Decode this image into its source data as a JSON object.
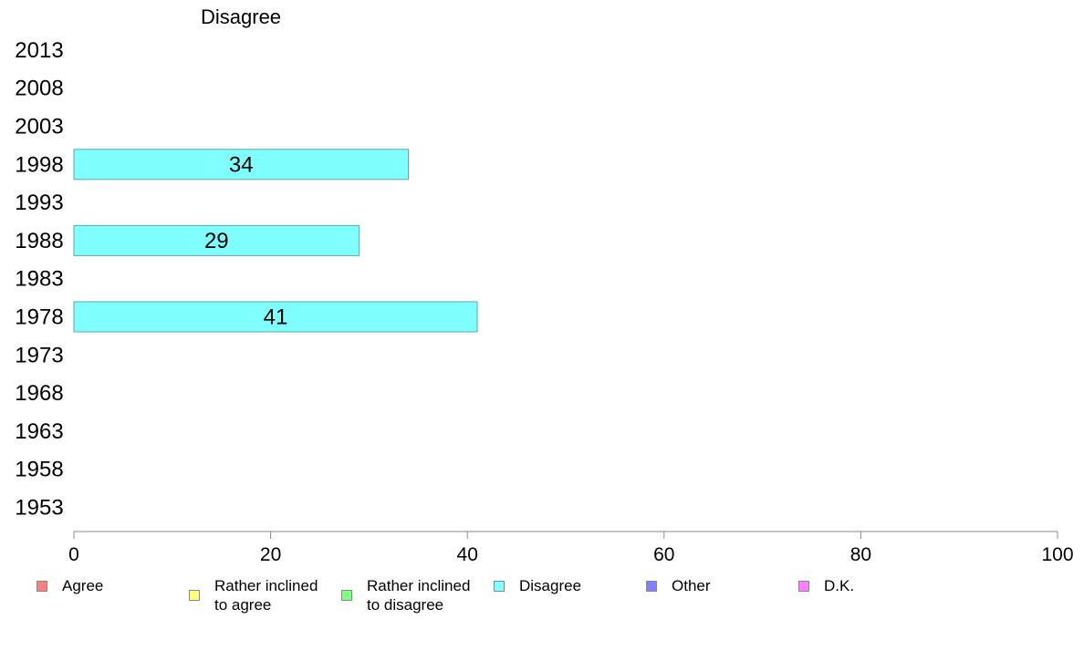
{
  "chart_data": {
    "type": "bar",
    "orientation": "horizontal",
    "panel_title": "Disagree",
    "categories": [
      "2013",
      "2008",
      "2003",
      "1998",
      "1993",
      "1988",
      "1983",
      "1978",
      "1973",
      "1968",
      "1963",
      "1958",
      "1953"
    ],
    "series": [
      {
        "name": "Disagree",
        "values": [
          null,
          null,
          null,
          34,
          null,
          29,
          null,
          41,
          null,
          null,
          null,
          null,
          null
        ],
        "color": "#80ffff"
      }
    ],
    "xlim": [
      0,
      100
    ],
    "xticks": [
      0,
      20,
      40,
      60,
      80,
      100
    ],
    "legend_position": "bottom",
    "legend": [
      {
        "label": "Agree",
        "color": "#ff8080"
      },
      {
        "label": "Rather inclined\nto agree",
        "color": "#ffff80"
      },
      {
        "label": "Rather inclined\nto disagree",
        "color": "#80ff80"
      },
      {
        "label": "Disagree",
        "color": "#80ffff"
      },
      {
        "label": "Other",
        "color": "#8080ff"
      },
      {
        "label": "D.K.",
        "color": "#ff80ff"
      }
    ]
  }
}
